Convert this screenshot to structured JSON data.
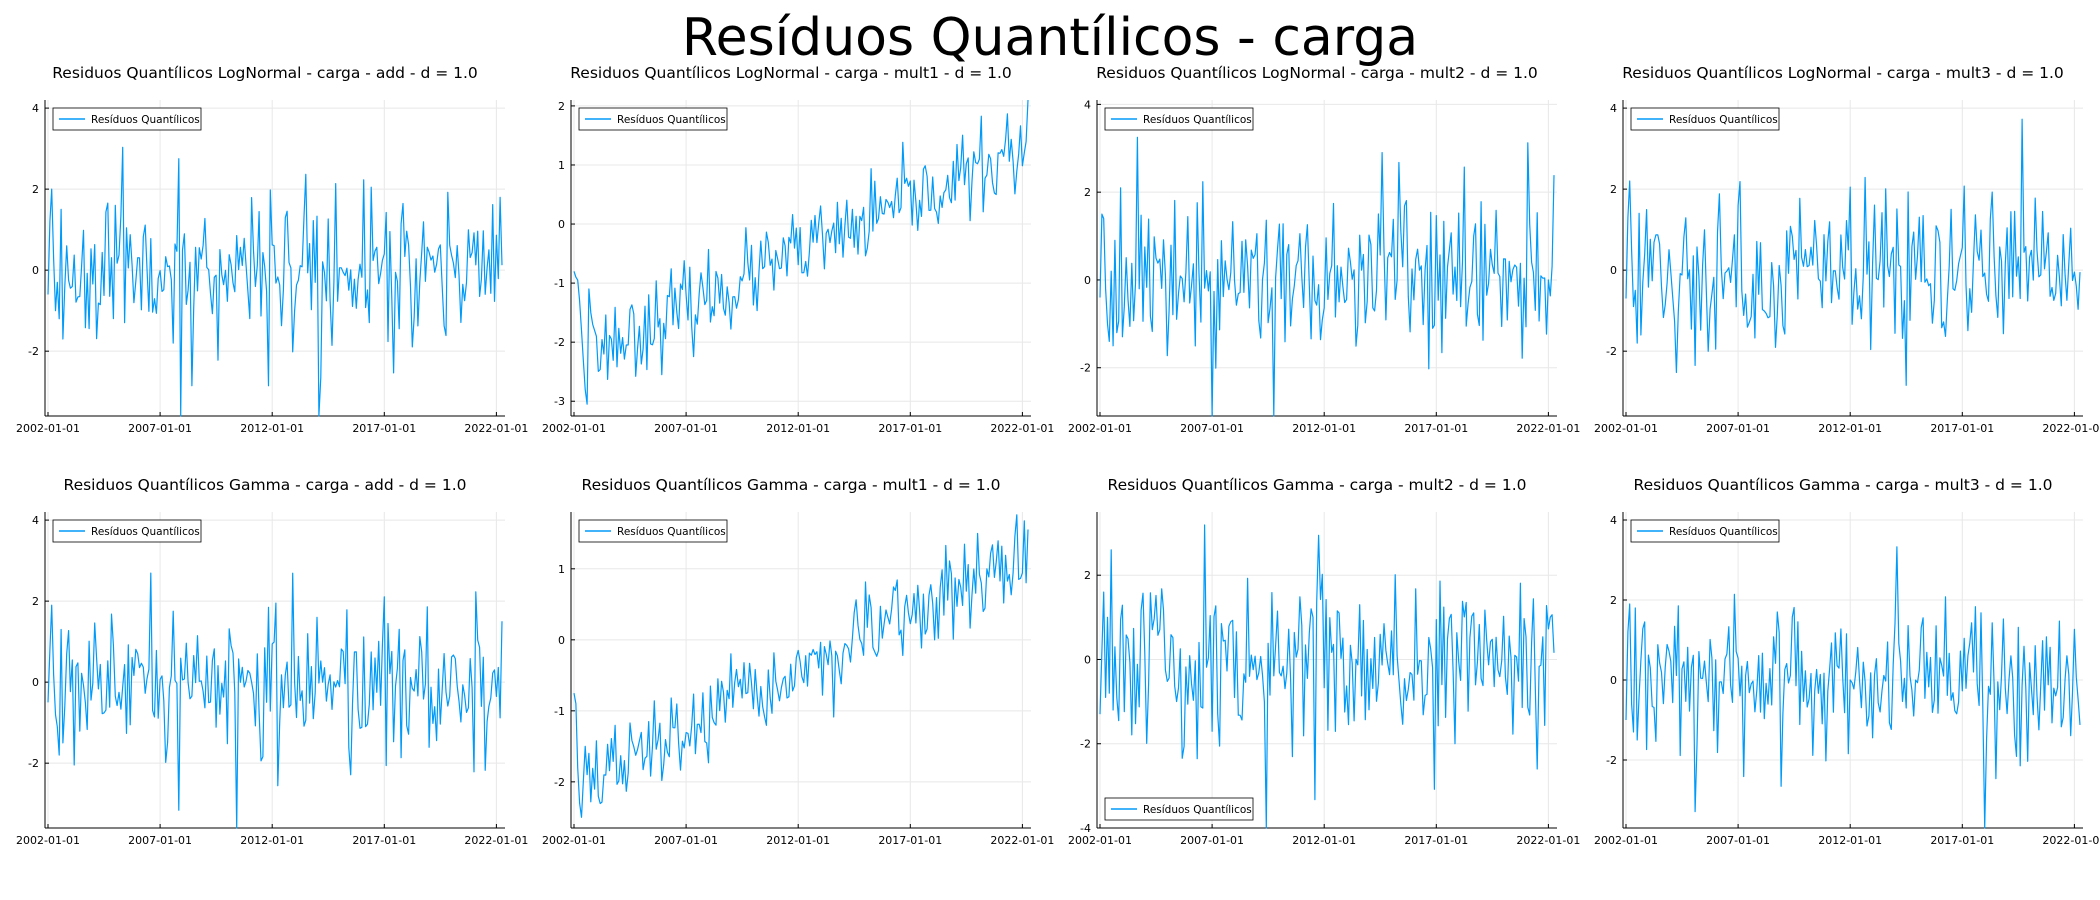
{
  "suptitle": "Resíduos Quantílicos - carga",
  "style": {
    "line_color": "#009AF9",
    "axis_color": "#000000",
    "grid_color": "#e8e8e8"
  },
  "x_ticks": [
    "2002-01-01",
    "2007-01-01",
    "2012-01-01",
    "2017-01-01",
    "2022-01-01"
  ],
  "x_range": [
    "2002-01-01",
    "2022-04-01"
  ],
  "chart_data": [
    {
      "type": "line",
      "title": "Residuos Quantílicos LogNormal - carga - add - d = 1.0",
      "series": [
        {
          "name": "Resíduos Quantílicos",
          "kind": "stationary",
          "seed": 11,
          "base": 0.0,
          "trend": 0.0,
          "noise": 0.9,
          "start": [
            -0.6,
            1.2,
            2.0,
            0.3,
            -1.0,
            -0.3,
            -1.2,
            1.5,
            -1.7,
            -0.4,
            0.6
          ]
        }
      ],
      "ylim": [
        -3.6,
        4.2
      ],
      "yticks": [
        -2,
        0,
        2,
        4
      ],
      "legend": "top-left",
      "grid": true
    },
    {
      "type": "line",
      "title": "Residuos Quantílicos LogNormal - carga - mult1 - d = 1.0",
      "series": [
        {
          "name": "Resíduos Quantílicos",
          "kind": "trend",
          "seed": 23,
          "base": -2.3,
          "trend": 3.6,
          "noise": 0.35,
          "start": [
            -0.8,
            -0.9,
            -0.95,
            -1.3,
            -1.8,
            -2.3,
            -2.8,
            -3.05,
            -1.1,
            -1.5,
            -1.7,
            -1.8,
            -1.9
          ]
        }
      ],
      "ylim": [
        -3.25,
        2.1
      ],
      "yticks": [
        -3,
        -2,
        -1,
        0,
        1,
        2
      ],
      "legend": "top-left",
      "grid": true
    },
    {
      "type": "line",
      "title": "Residuos Quantílicos LogNormal - carga - mult2 - d = 1.0",
      "series": [
        {
          "name": "Resíduos Quantílicos",
          "kind": "stationary",
          "seed": 37,
          "base": 0.0,
          "trend": 0.0,
          "noise": 0.85,
          "start": [
            -0.4,
            1.5,
            1.4,
            -0.2,
            -1.0,
            -1.4,
            0.2,
            -1.5,
            0.9,
            -1.2
          ]
        }
      ],
      "ylim": [
        -3.1,
        4.1
      ],
      "yticks": [
        -2,
        0,
        2,
        4
      ],
      "legend": "top-left",
      "grid": true
    },
    {
      "type": "line",
      "title": "Residuos Quantílicos LogNormal - carga - mult3 - d = 1.0",
      "series": [
        {
          "name": "Resíduos Quantílicos",
          "kind": "stationary",
          "seed": 41,
          "base": 0.0,
          "trend": 0.0,
          "noise": 0.9,
          "start": [
            -0.7,
            1.3,
            2.2,
            0.5,
            -0.9,
            -0.5,
            -1.8,
            1.4,
            -1.6,
            -0.3,
            0.4
          ]
        }
      ],
      "ylim": [
        -3.6,
        4.2
      ],
      "yticks": [
        -2,
        0,
        2,
        4
      ],
      "legend": "top-left",
      "grid": true
    },
    {
      "type": "line",
      "title": "Residuos Quantílicos Gamma - carga - add - d = 1.0",
      "series": [
        {
          "name": "Resíduos Quantílicos",
          "kind": "stationary",
          "seed": 53,
          "base": 0.0,
          "trend": 0.0,
          "noise": 0.9,
          "start": [
            -0.5,
            0.8,
            1.9,
            0.2,
            -0.8,
            -1.1,
            -1.8,
            1.3,
            -1.5,
            -0.6,
            0.7
          ]
        }
      ],
      "ylim": [
        -3.6,
        4.2
      ],
      "yticks": [
        -2,
        0,
        2,
        4
      ],
      "legend": "top-left",
      "grid": true
    },
    {
      "type": "line",
      "title": "Residuos Quantílicos Gamma - carga - mult1 - d = 1.0",
      "series": [
        {
          "name": "Resíduos Quantílicos",
          "kind": "trend",
          "seed": 67,
          "base": -2.1,
          "trend": 3.3,
          "noise": 0.3,
          "start": [
            -0.75,
            -0.9,
            -1.8,
            -2.3,
            -2.5,
            -2.0,
            -1.5,
            -1.9,
            -1.6
          ]
        }
      ],
      "ylim": [
        -2.65,
        1.8
      ],
      "yticks": [
        -2,
        -1,
        0,
        1
      ],
      "legend": "top-left",
      "grid": true
    },
    {
      "type": "line",
      "title": "Residuos Quantílicos Gamma - carga - mult2 - d = 1.0",
      "series": [
        {
          "name": "Resíduos Quantílicos",
          "kind": "stationary",
          "seed": 79,
          "base": 0.0,
          "trend": 0.0,
          "noise": 0.95,
          "start": [
            -1.3,
            0.2,
            1.6,
            -0.9,
            1.0,
            -0.8,
            2.6,
            -1.2,
            0.3,
            -0.9
          ]
        }
      ],
      "ylim": [
        -4.0,
        3.5
      ],
      "yticks": [
        -4,
        -2,
        0,
        2
      ],
      "legend": "bottom-left",
      "grid": true
    },
    {
      "type": "line",
      "title": "Residuos Quantílicos Gamma - carga - mult3 - d = 1.0",
      "series": [
        {
          "name": "Resíduos Quantílicos",
          "kind": "stationary",
          "seed": 97,
          "base": 0.0,
          "trend": 0.0,
          "noise": 0.9,
          "start": [
            -1.0,
            1.2,
            1.9,
            -0.6,
            -1.3,
            1.8,
            -1.5,
            -0.4,
            0.5
          ]
        }
      ],
      "ylim": [
        -3.7,
        4.2
      ],
      "yticks": [
        -2,
        0,
        2,
        4
      ],
      "legend": "top-left",
      "grid": true
    }
  ]
}
